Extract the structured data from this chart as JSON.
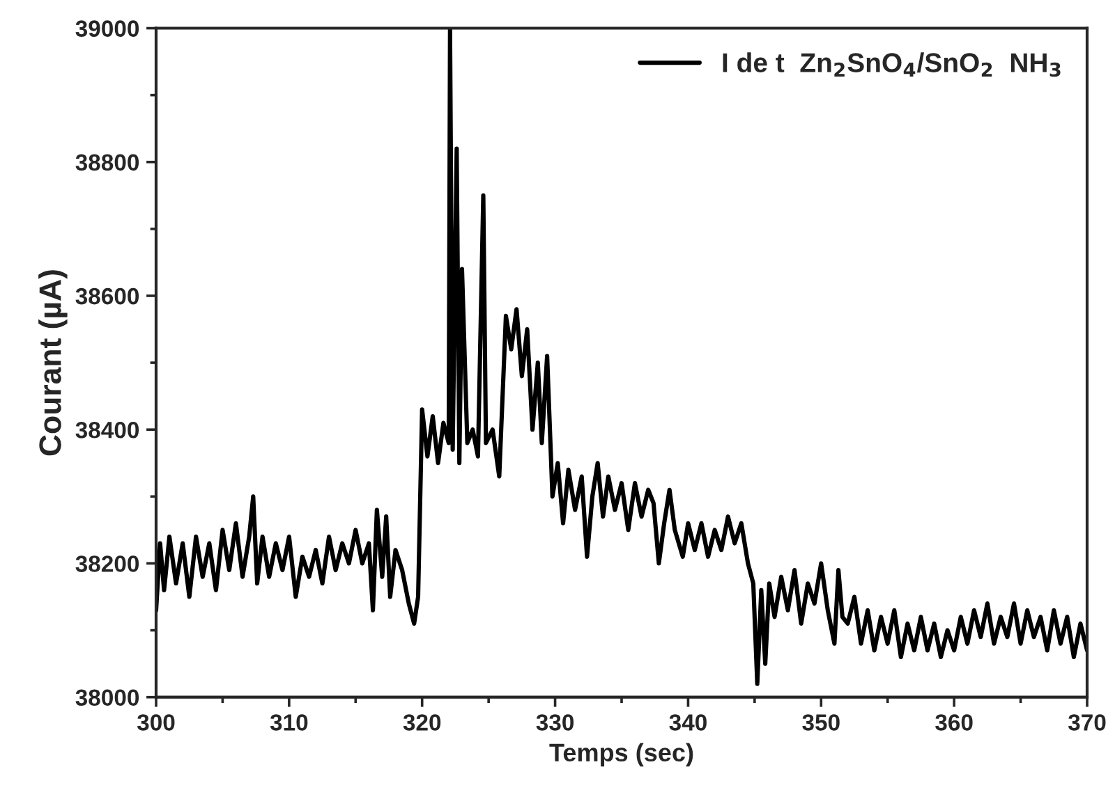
{
  "chart_data": {
    "type": "line",
    "xlabel": "Temps (sec)",
    "ylabel": "Courant (µA)",
    "xlim": [
      300,
      370
    ],
    "xticks": [
      300,
      310,
      320,
      330,
      340,
      350,
      360,
      370
    ],
    "ylim": [
      38000,
      39000
    ],
    "yticks": [
      38000,
      38200,
      38400,
      38600,
      38800,
      39000
    ],
    "legend": "top right",
    "grid": false,
    "marker": "none",
    "line_style": "solid",
    "series": [
      {
        "name": "I de t  Zn$_{2}$SnO$_{4}$/SnO$_{2}$  NH$_{3}$",
        "color": "#000000",
        "x": [
          300,
          300.3,
          300.6,
          301,
          301.5,
          302,
          302.5,
          303,
          303.5,
          304,
          304.5,
          305,
          305.5,
          306,
          306.5,
          307,
          307.3,
          307.6,
          308,
          308.5,
          309,
          309.5,
          310,
          310.5,
          311,
          311.5,
          312,
          312.5,
          313,
          313.5,
          314,
          314.5,
          315,
          315.5,
          316,
          316.3,
          316.6,
          317,
          317.3,
          317.6,
          318,
          318.5,
          319,
          319.4,
          319.7,
          320,
          320.4,
          320.8,
          321.2,
          321.6,
          322,
          322.1,
          322.3,
          322.6,
          322.8,
          323,
          323.4,
          323.8,
          324.2,
          324.6,
          324.8,
          325.3,
          325.8,
          326.3,
          326.7,
          327.1,
          327.5,
          327.9,
          328.3,
          328.7,
          329,
          329.4,
          329.8,
          330.2,
          330.6,
          331,
          331.5,
          332,
          332.4,
          332.8,
          333.2,
          333.6,
          334,
          334.5,
          335,
          335.5,
          336,
          336.5,
          337,
          337.4,
          337.8,
          338.2,
          338.6,
          339,
          339.6,
          340,
          340.5,
          341,
          341.5,
          342,
          342.5,
          343,
          343.5,
          344,
          344.5,
          344.9,
          345.2,
          345.5,
          345.8,
          346.1,
          346.5,
          347,
          347.5,
          348,
          348.5,
          349,
          349.5,
          350,
          350.5,
          351,
          351.3,
          351.6,
          352,
          352.5,
          353,
          353.5,
          354,
          354.5,
          355,
          355.5,
          356,
          356.5,
          357,
          357.5,
          358,
          358.5,
          359,
          359.5,
          360,
          360.5,
          361,
          361.5,
          362,
          362.5,
          363,
          363.5,
          364,
          364.5,
          365,
          365.5,
          366,
          366.5,
          367,
          367.5,
          368,
          368.5,
          369,
          369.5,
          370
        ],
        "values": [
          38130,
          38230,
          38160,
          38240,
          38170,
          38230,
          38150,
          38240,
          38180,
          38230,
          38160,
          38250,
          38190,
          38260,
          38180,
          38240,
          38300,
          38170,
          38240,
          38180,
          38230,
          38190,
          38240,
          38150,
          38210,
          38180,
          38220,
          38170,
          38240,
          38190,
          38230,
          38200,
          38250,
          38200,
          38230,
          38130,
          38280,
          38180,
          38270,
          38150,
          38220,
          38190,
          38140,
          38110,
          38150,
          38430,
          38360,
          38420,
          38350,
          38410,
          38380,
          39000,
          38370,
          38820,
          38350,
          38640,
          38380,
          38400,
          38360,
          38750,
          38380,
          38400,
          38330,
          38570,
          38520,
          38580,
          38480,
          38550,
          38400,
          38500,
          38380,
          38510,
          38300,
          38350,
          38260,
          38340,
          38280,
          38330,
          38210,
          38300,
          38350,
          38270,
          38330,
          38280,
          38320,
          38250,
          38320,
          38270,
          38310,
          38290,
          38200,
          38260,
          38310,
          38250,
          38210,
          38260,
          38220,
          38260,
          38210,
          38250,
          38220,
          38270,
          38230,
          38260,
          38200,
          38170,
          38020,
          38160,
          38050,
          38170,
          38120,
          38180,
          38130,
          38190,
          38110,
          38170,
          38140,
          38200,
          38130,
          38080,
          38190,
          38120,
          38110,
          38150,
          38080,
          38130,
          38070,
          38120,
          38080,
          38130,
          38060,
          38110,
          38070,
          38120,
          38070,
          38110,
          38060,
          38100,
          38070,
          38120,
          38080,
          38130,
          38090,
          38140,
          38080,
          38120,
          38090,
          38140,
          38080,
          38130,
          38090,
          38120,
          38070,
          38130,
          38080,
          38120,
          38060,
          38110,
          38070
        ]
      }
    ]
  }
}
